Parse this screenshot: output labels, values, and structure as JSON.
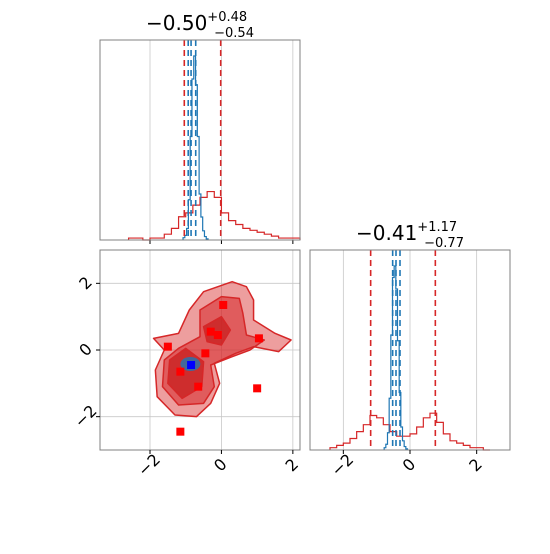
{
  "chart_data": [
    {
      "type": "histogram",
      "panel": "top-left marginal (parameter 1)",
      "title": {
        "value": "−0.50",
        "plus": "+0.48",
        "minus": "−0.54"
      },
      "xlim": [
        -3.4,
        2.2
      ],
      "xticks": [
        -2,
        0,
        2
      ],
      "grid": true,
      "series": [
        {
          "color": "#d62728",
          "x": [
            -2.5,
            -2.3,
            -2.1,
            -1.9,
            -1.7,
            -1.5,
            -1.3,
            -1.1,
            -0.9,
            -0.7,
            -0.5,
            -0.3,
            -0.1,
            0.1,
            0.3,
            0.5,
            0.7,
            0.9,
            1.1,
            1.3,
            1.5,
            1.7,
            1.9,
            2.1
          ],
          "y": [
            1,
            1,
            0,
            1,
            1,
            3,
            6,
            12,
            14,
            18,
            22,
            25,
            22,
            14,
            10,
            8,
            6,
            5,
            4,
            3,
            2,
            1,
            1,
            1
          ]
        },
        {
          "color": "#1f77b4",
          "x": [
            -1.05,
            -1.0,
            -0.95,
            -0.9,
            -0.85,
            -0.8,
            -0.75,
            -0.7,
            -0.65,
            -0.6,
            -0.55,
            -0.5,
            -0.45,
            -0.4
          ],
          "y": [
            2,
            4,
            10,
            35,
            90,
            140,
            160,
            135,
            90,
            40,
            20,
            8,
            3,
            1
          ]
        }
      ],
      "vlines": [
        {
          "x": -1.04,
          "color": "#d62728"
        },
        {
          "x": -0.02,
          "color": "#d62728"
        },
        {
          "x": -0.93,
          "color": "#1f77b4"
        },
        {
          "x": -0.72,
          "color": "#1f77b4"
        },
        {
          "x": -0.85,
          "color": "#1f77b4"
        }
      ]
    },
    {
      "type": "scatter",
      "panel": "bottom-left 2D joint (parameter 1 vs parameter 2)",
      "xlim": [
        -3.4,
        2.2
      ],
      "ylim": [
        -3.0,
        3.0
      ],
      "xticks": [
        -2,
        0,
        2
      ],
      "yticks": [
        -2,
        0,
        2
      ],
      "grid": true,
      "contours": [
        {
          "color": "#d62728",
          "level": "outer",
          "points": [
            [
              -0.9,
              1.2
            ],
            [
              -0.5,
              1.75
            ],
            [
              0.3,
              2.05
            ],
            [
              0.7,
              1.9
            ],
            [
              0.9,
              1.5
            ],
            [
              0.9,
              0.9
            ],
            [
              1.5,
              0.5
            ],
            [
              1.95,
              0.3
            ],
            [
              1.6,
              -0.05
            ],
            [
              0.9,
              0.1
            ],
            [
              0.4,
              -0.1
            ],
            [
              -0.2,
              -0.4
            ],
            [
              -0.05,
              -1.0
            ],
            [
              -0.3,
              -1.6
            ],
            [
              -0.7,
              -2.0
            ],
            [
              -1.3,
              -1.95
            ],
            [
              -1.8,
              -1.4
            ],
            [
              -1.85,
              -0.6
            ],
            [
              -1.6,
              0.0
            ],
            [
              -1.9,
              0.35
            ],
            [
              -1.2,
              0.5
            ],
            [
              -0.9,
              1.2
            ]
          ]
        },
        {
          "color": "#d62728",
          "level": "middle",
          "points": [
            [
              -0.6,
              1.2
            ],
            [
              0.0,
              1.6
            ],
            [
              0.5,
              1.55
            ],
            [
              0.6,
              1.1
            ],
            [
              0.7,
              0.45
            ],
            [
              1.2,
              0.3
            ],
            [
              0.8,
              0.0
            ],
            [
              0.3,
              -0.2
            ],
            [
              -0.3,
              -0.45
            ],
            [
              -0.2,
              -1.1
            ],
            [
              -0.5,
              -1.6
            ],
            [
              -1.2,
              -1.65
            ],
            [
              -1.65,
              -1.1
            ],
            [
              -1.6,
              -0.3
            ],
            [
              -1.2,
              0.05
            ],
            [
              -0.6,
              0.4
            ],
            [
              -0.6,
              1.2
            ]
          ]
        },
        {
          "color": "#d62728",
          "level": "inner-a",
          "points": [
            [
              -0.5,
              0.7
            ],
            [
              0.0,
              1.0
            ],
            [
              0.25,
              0.6
            ],
            [
              0.0,
              0.15
            ],
            [
              -0.4,
              0.25
            ],
            [
              -0.5,
              0.7
            ]
          ]
        },
        {
          "color": "#d62728",
          "level": "inner-b",
          "points": [
            [
              -1.45,
              -0.3
            ],
            [
              -1.0,
              0.05
            ],
            [
              -0.5,
              -0.35
            ],
            [
              -0.55,
              -1.1
            ],
            [
              -1.1,
              -1.45
            ],
            [
              -1.5,
              -1.0
            ],
            [
              -1.45,
              -0.3
            ]
          ]
        }
      ],
      "markers": [
        {
          "x": 0.05,
          "y": 1.35,
          "color": "#ff0000"
        },
        {
          "x": -0.3,
          "y": 0.55,
          "color": "#ff0000"
        },
        {
          "x": -0.1,
          "y": 0.45,
          "color": "#ff0000"
        },
        {
          "x": 1.05,
          "y": 0.35,
          "color": "#ff0000"
        },
        {
          "x": -1.5,
          "y": 0.1,
          "color": "#ff0000"
        },
        {
          "x": -0.45,
          "y": -0.1,
          "color": "#ff0000"
        },
        {
          "x": -1.15,
          "y": -0.65,
          "color": "#ff0000"
        },
        {
          "x": -0.65,
          "y": -1.1,
          "color": "#ff0000"
        },
        {
          "x": 1.0,
          "y": -1.15,
          "color": "#ff0000"
        },
        {
          "x": -1.15,
          "y": -2.45,
          "color": "#ff0000"
        },
        {
          "x": -0.85,
          "y": -0.45,
          "color": "#0000ff"
        }
      ],
      "blue_blob": {
        "x": -0.87,
        "y": -0.42,
        "color": "#1f77b4"
      }
    },
    {
      "type": "histogram",
      "panel": "bottom-right marginal (parameter 2)",
      "title": {
        "value": "−0.41",
        "plus": "+1.17",
        "minus": "−0.77"
      },
      "xlim": [
        -3.0,
        3.0
      ],
      "xticks": [
        -2,
        0,
        2
      ],
      "grid": true,
      "series": [
        {
          "color": "#d62728",
          "x": [
            -2.3,
            -2.1,
            -1.9,
            -1.7,
            -1.5,
            -1.3,
            -1.1,
            -0.9,
            -0.7,
            -0.5,
            -0.3,
            -0.1,
            0.1,
            0.3,
            0.5,
            0.7,
            0.9,
            1.1,
            1.3,
            1.5,
            1.7,
            1.9,
            2.1,
            2.3
          ],
          "y": [
            1,
            2,
            3,
            5,
            8,
            11,
            15,
            14,
            11,
            8,
            6,
            6,
            7,
            10,
            14,
            16,
            12,
            7,
            4,
            3,
            2,
            1,
            1,
            0
          ]
        },
        {
          "color": "#1f77b4",
          "x": [
            -0.75,
            -0.7,
            -0.65,
            -0.6,
            -0.55,
            -0.5,
            -0.45,
            -0.4,
            -0.35,
            -0.3,
            -0.25,
            -0.2,
            -0.15,
            -0.1
          ],
          "y": [
            2,
            5,
            15,
            45,
            100,
            150,
            160,
            140,
            95,
            50,
            20,
            8,
            3,
            1
          ]
        }
      ],
      "vlines": [
        {
          "x": -1.18,
          "color": "#d62728"
        },
        {
          "x": 0.76,
          "color": "#d62728"
        },
        {
          "x": -0.52,
          "color": "#1f77b4"
        },
        {
          "x": -0.3,
          "color": "#1f77b4"
        },
        {
          "x": -0.42,
          "color": "#1f77b4"
        }
      ]
    }
  ]
}
